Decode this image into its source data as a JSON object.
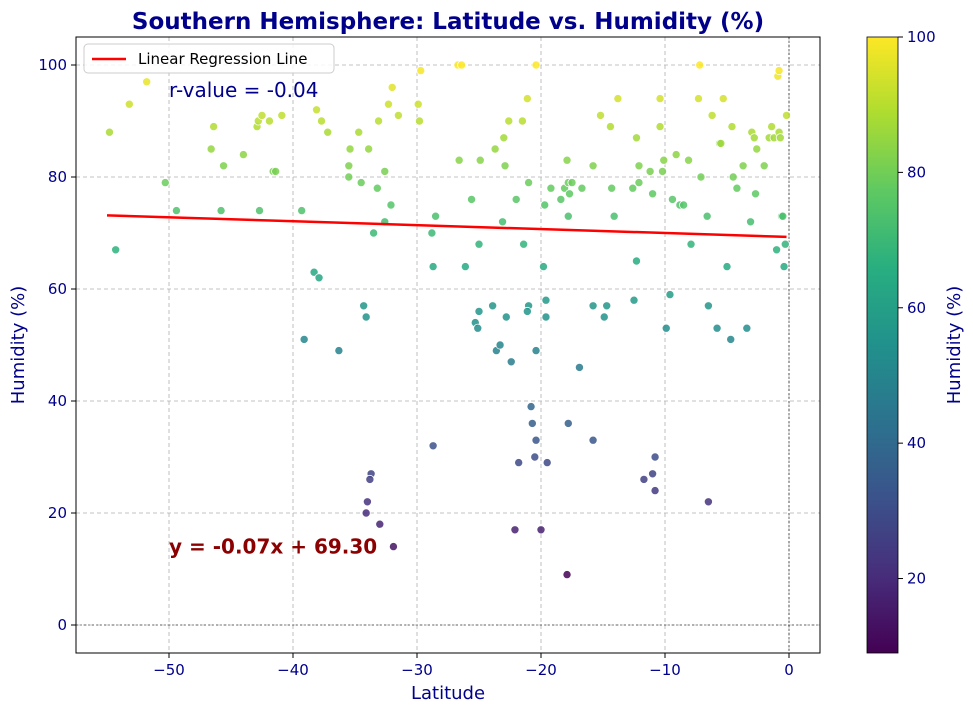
{
  "chart_data": {
    "type": "scatter",
    "title": "Southern Hemisphere: Latitude vs. Humidity (%)",
    "xlabel": "Latitude",
    "ylabel": "Humidity (%)",
    "xlim": [
      -57.5,
      2.5
    ],
    "ylim": [
      -5,
      105
    ],
    "xticks": [
      -50,
      -40,
      -30,
      -20,
      -10,
      0
    ],
    "yticks": [
      0,
      20,
      40,
      60,
      80,
      100
    ],
    "grid": true,
    "colormap": "viridis",
    "colorbar": {
      "label": "Humidity (%)",
      "range": [
        9,
        100
      ],
      "ticks": [
        20,
        40,
        60,
        80,
        100
      ]
    },
    "legend": {
      "position": "top-left",
      "entries": [
        {
          "label": "Linear Regression Line",
          "color": "#ff0000"
        }
      ]
    },
    "regression": {
      "slope": -0.07,
      "intercept": 69.3,
      "x_range": [
        -55,
        -0.2
      ],
      "equation": "y = -0.07x + 69.30",
      "r_label": "r-value = -0.04"
    },
    "annotations": {
      "equation_at": [
        -50,
        14
      ],
      "rvalue_at": [
        -50,
        95.5
      ]
    },
    "points": [
      [
        -54.8,
        88
      ],
      [
        -54.3,
        67
      ],
      [
        -53.2,
        93
      ],
      [
        -51.8,
        97
      ],
      [
        -50.3,
        79
      ],
      [
        -49.4,
        74
      ],
      [
        -46.6,
        85
      ],
      [
        -46.4,
        89
      ],
      [
        -45.6,
        82
      ],
      [
        -45.8,
        74
      ],
      [
        -44.0,
        84
      ],
      [
        -42.9,
        89
      ],
      [
        -42.8,
        90
      ],
      [
        -42.5,
        91
      ],
      [
        -42.7,
        74
      ],
      [
        -41.9,
        90
      ],
      [
        -41.6,
        81
      ],
      [
        -41.4,
        81
      ],
      [
        -40.9,
        91
      ],
      [
        -39.3,
        74
      ],
      [
        -39.1,
        51
      ],
      [
        -38.3,
        63
      ],
      [
        -38.1,
        92
      ],
      [
        -37.9,
        62
      ],
      [
        -37.7,
        90
      ],
      [
        -37.2,
        88
      ],
      [
        -36.3,
        49
      ],
      [
        -35.5,
        82
      ],
      [
        -35.5,
        80
      ],
      [
        -35.4,
        85
      ],
      [
        -34.7,
        88
      ],
      [
        -34.5,
        79
      ],
      [
        -34.3,
        57
      ],
      [
        -34.1,
        55
      ],
      [
        -33.9,
        85
      ],
      [
        -33.5,
        70
      ],
      [
        -34.0,
        22
      ],
      [
        -34.1,
        20
      ],
      [
        -33.7,
        27
      ],
      [
        -33.8,
        26
      ],
      [
        -33.2,
        78
      ],
      [
        -33.1,
        90
      ],
      [
        -33.0,
        18
      ],
      [
        -32.6,
        72
      ],
      [
        -32.6,
        81
      ],
      [
        -32.3,
        93
      ],
      [
        -32.1,
        75
      ],
      [
        -32.0,
        96
      ],
      [
        -31.9,
        14
      ],
      [
        -31.5,
        91
      ],
      [
        -29.9,
        93
      ],
      [
        -29.7,
        99
      ],
      [
        -29.8,
        90
      ],
      [
        -28.8,
        70
      ],
      [
        -28.7,
        64
      ],
      [
        -28.5,
        73
      ],
      [
        -28.7,
        32
      ],
      [
        -26.7,
        100
      ],
      [
        -26.4,
        100
      ],
      [
        -26.6,
        83
      ],
      [
        -26.1,
        64
      ],
      [
        -25.6,
        76
      ],
      [
        -25.3,
        54
      ],
      [
        -25.1,
        53
      ],
      [
        -25.0,
        56
      ],
      [
        -24.9,
        83
      ],
      [
        -25.0,
        68
      ],
      [
        -23.9,
        57
      ],
      [
        -23.7,
        85
      ],
      [
        -23.6,
        49
      ],
      [
        -23.3,
        50
      ],
      [
        -23.1,
        72
      ],
      [
        -22.8,
        55
      ],
      [
        -22.6,
        90
      ],
      [
        -22.4,
        47
      ],
      [
        -23.0,
        87
      ],
      [
        -22.9,
        82
      ],
      [
        -22.0,
        76
      ],
      [
        -21.8,
        29
      ],
      [
        -22.1,
        17
      ],
      [
        -21.5,
        90
      ],
      [
        -21.4,
        68
      ],
      [
        -21.1,
        94
      ],
      [
        -21.0,
        79
      ],
      [
        -21.0,
        57
      ],
      [
        -21.1,
        56
      ],
      [
        -20.8,
        39
      ],
      [
        -20.7,
        36
      ],
      [
        -20.5,
        30
      ],
      [
        -20.4,
        49
      ],
      [
        -20.4,
        33
      ],
      [
        -20.4,
        100
      ],
      [
        -20.0,
        17
      ],
      [
        -19.8,
        64
      ],
      [
        -19.7,
        75
      ],
      [
        -19.6,
        58
      ],
      [
        -19.6,
        55
      ],
      [
        -19.5,
        29
      ],
      [
        -19.2,
        78
      ],
      [
        -18.4,
        76
      ],
      [
        -18.1,
        78
      ],
      [
        -17.9,
        83
      ],
      [
        -17.8,
        79
      ],
      [
        -17.8,
        73
      ],
      [
        -17.8,
        36
      ],
      [
        -17.9,
        9
      ],
      [
        -17.7,
        77
      ],
      [
        -17.5,
        79
      ],
      [
        -16.9,
        46
      ],
      [
        -16.7,
        78
      ],
      [
        -15.8,
        82
      ],
      [
        -15.8,
        57
      ],
      [
        -15.8,
        33
      ],
      [
        -15.2,
        91
      ],
      [
        -14.9,
        55
      ],
      [
        -14.7,
        57
      ],
      [
        -14.4,
        89
      ],
      [
        -14.3,
        78
      ],
      [
        -14.1,
        73
      ],
      [
        -13.8,
        94
      ],
      [
        -12.6,
        78
      ],
      [
        -12.5,
        58
      ],
      [
        -12.3,
        65
      ],
      [
        -12.3,
        87
      ],
      [
        -12.1,
        79
      ],
      [
        -12.1,
        82
      ],
      [
        -11.7,
        26
      ],
      [
        -11.2,
        81
      ],
      [
        -11.0,
        77
      ],
      [
        -11.0,
        27
      ],
      [
        -10.8,
        30
      ],
      [
        -10.8,
        24
      ],
      [
        -10.4,
        94
      ],
      [
        -10.4,
        89
      ],
      [
        -10.2,
        81
      ],
      [
        -10.1,
        83
      ],
      [
        -9.9,
        53
      ],
      [
        -9.6,
        59
      ],
      [
        -9.4,
        76
      ],
      [
        -9.1,
        84
      ],
      [
        -8.8,
        75
      ],
      [
        -8.5,
        75
      ],
      [
        -8.1,
        83
      ],
      [
        -7.9,
        68
      ],
      [
        -7.3,
        94
      ],
      [
        -7.2,
        100
      ],
      [
        -7.1,
        80
      ],
      [
        -6.6,
        73
      ],
      [
        -6.5,
        57
      ],
      [
        -6.5,
        22
      ],
      [
        -6.2,
        91
      ],
      [
        -5.8,
        53
      ],
      [
        -5.6,
        86
      ],
      [
        -5.5,
        86
      ],
      [
        -5.3,
        94
      ],
      [
        -5.0,
        64
      ],
      [
        -4.7,
        51
      ],
      [
        -4.6,
        89
      ],
      [
        -4.5,
        80
      ],
      [
        -4.2,
        78
      ],
      [
        -3.7,
        82
      ],
      [
        -3.4,
        53
      ],
      [
        -3.1,
        72
      ],
      [
        -3.0,
        88
      ],
      [
        -2.8,
        87
      ],
      [
        -2.7,
        77
      ],
      [
        -2.6,
        85
      ],
      [
        -2.0,
        82
      ],
      [
        -1.6,
        87
      ],
      [
        -1.4,
        89
      ],
      [
        -1.2,
        87
      ],
      [
        -1.0,
        67
      ],
      [
        -0.9,
        98
      ],
      [
        -0.8,
        99
      ],
      [
        -0.8,
        88
      ],
      [
        -0.7,
        87
      ],
      [
        -0.6,
        73
      ],
      [
        -0.5,
        73
      ],
      [
        -0.4,
        64
      ],
      [
        -0.3,
        68
      ],
      [
        -0.2,
        91
      ]
    ]
  }
}
